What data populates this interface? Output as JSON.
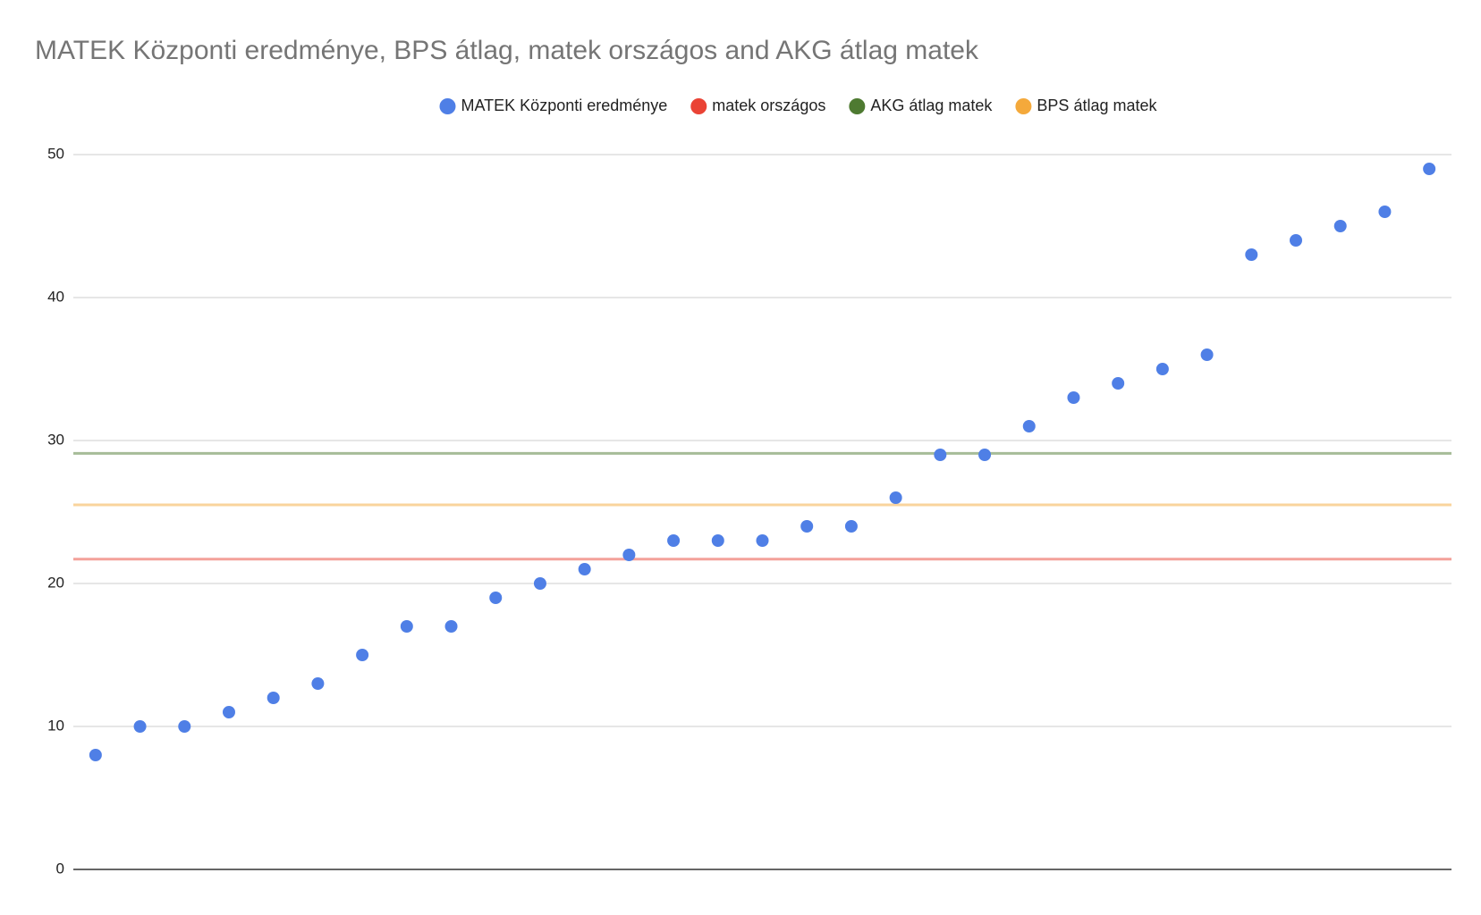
{
  "chart_data": {
    "type": "scatter",
    "title": "MATEK Központi eredménye, BPS átlag, matek országos and AKG átlag matek",
    "categories": [
      null,
      null,
      null,
      null,
      null,
      null,
      null,
      null,
      null,
      null,
      null,
      null,
      null,
      null,
      null,
      null,
      null,
      null,
      null,
      null,
      null,
      null,
      null,
      null,
      null,
      null,
      null,
      null,
      null,
      null,
      null
    ],
    "series": [
      {
        "name": "MATEK Központi eredménye",
        "color": "#4f7fe6",
        "type": "scatter",
        "values": [
          8,
          10,
          10,
          11,
          12,
          13,
          15,
          17,
          17,
          19,
          20,
          21,
          22,
          23,
          23,
          23,
          24,
          24,
          26,
          29,
          29,
          31,
          33,
          34,
          35,
          36,
          43,
          44,
          45,
          46,
          49
        ]
      },
      {
        "name": "matek országos",
        "color": "#ea4335",
        "type": "line",
        "values": [
          21.7,
          21.7,
          21.7,
          21.7,
          21.7,
          21.7,
          21.7,
          21.7,
          21.7,
          21.7,
          21.7,
          21.7,
          21.7,
          21.7,
          21.7,
          21.7,
          21.7,
          21.7,
          21.7,
          21.7,
          21.7,
          21.7,
          21.7,
          21.7,
          21.7,
          21.7,
          21.7,
          21.7,
          21.7,
          21.7,
          21.7
        ]
      },
      {
        "name": "AKG átlag matek",
        "color": "#4e7a31",
        "type": "line",
        "values": [
          29.1,
          29.1,
          29.1,
          29.1,
          29.1,
          29.1,
          29.1,
          29.1,
          29.1,
          29.1,
          29.1,
          29.1,
          29.1,
          29.1,
          29.1,
          29.1,
          29.1,
          29.1,
          29.1,
          29.1,
          29.1,
          29.1,
          29.1,
          29.1,
          29.1,
          29.1,
          29.1,
          29.1,
          29.1,
          29.1,
          29.1
        ]
      },
      {
        "name": "BPS átlag matek",
        "color": "#f4a93b",
        "type": "line",
        "values": [
          25.5,
          25.5,
          25.5,
          25.5,
          25.5,
          25.5,
          25.5,
          25.5,
          25.5,
          25.5,
          25.5,
          25.5,
          25.5,
          25.5,
          25.5,
          25.5,
          25.5,
          25.5,
          25.5,
          25.5,
          25.5,
          25.5,
          25.5,
          25.5,
          25.5,
          25.5,
          25.5,
          25.5,
          25.5,
          25.5,
          25.5
        ]
      }
    ],
    "ylim": [
      0,
      50
    ],
    "yticks": [
      0,
      10,
      20,
      30,
      40,
      50
    ],
    "grid": true,
    "legend": "top"
  }
}
